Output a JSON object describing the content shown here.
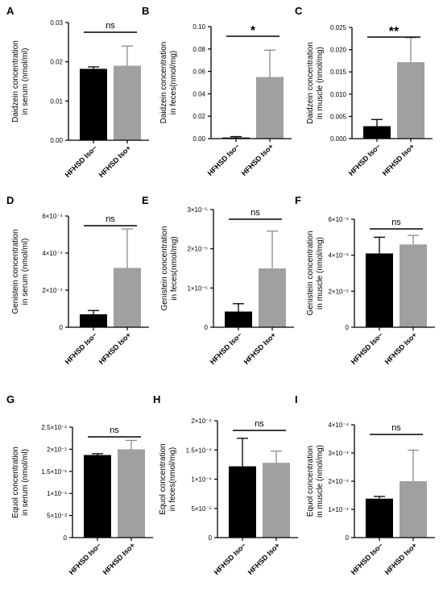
{
  "chart_data": [
    {
      "type": "bar",
      "panel": "A",
      "categories": [
        "HFHSD Iso−",
        "HFHSD Iso+"
      ],
      "values": [
        0.0182,
        0.019
      ],
      "errors": [
        0.0005,
        0.005
      ],
      "colors": [
        "#000000",
        "#a0a0a0"
      ],
      "ylabel_lines": [
        "Daidzein concentration",
        "in serum (nmol/ml)"
      ],
      "ylim": [
        0,
        0.03
      ],
      "ticks": [
        0,
        0.01,
        0.02,
        0.03
      ],
      "tick_labels": [
        "0.00",
        "0.01",
        "0.02",
        "0.03"
      ],
      "significance": "ns"
    },
    {
      "type": "bar",
      "panel": "B",
      "categories": [
        "HFHSD Iso−",
        "HFHSD Iso+"
      ],
      "values": [
        0.001,
        0.055
      ],
      "errors": [
        0.0008,
        0.024
      ],
      "colors": [
        "#000000",
        "#a0a0a0"
      ],
      "ylabel_lines": [
        "Daidzein concentration",
        "in feces(nmol/mg)"
      ],
      "ylim": [
        0,
        0.1
      ],
      "ticks": [
        0,
        0.02,
        0.04,
        0.06,
        0.08,
        0.1
      ],
      "tick_labels": [
        "0.00",
        "0.02",
        "0.04",
        "0.06",
        "0.08",
        "0.10"
      ],
      "significance": "*"
    },
    {
      "type": "bar",
      "panel": "C",
      "categories": [
        "HFHSD Iso−",
        "HFHSD Iso+"
      ],
      "values": [
        0.0028,
        0.0172
      ],
      "errors": [
        0.0015,
        0.0055
      ],
      "colors": [
        "#000000",
        "#a0a0a0"
      ],
      "ylabel_lines": [
        "Daidzein concentration",
        "in muscle (nmol/mg)"
      ],
      "ylim": [
        0,
        0.025
      ],
      "ticks": [
        0,
        0.005,
        0.01,
        0.015,
        0.02,
        0.025
      ],
      "tick_labels": [
        "0.000",
        "0.005",
        "0.010",
        "0.015",
        "0.020",
        "0.025"
      ],
      "significance": "**"
    },
    {
      "type": "bar",
      "panel": "D",
      "categories": [
        "HFHSD Iso−",
        "HFHSD Iso+"
      ],
      "values": [
        7e-05,
        0.00032
      ],
      "errors": [
        2e-05,
        0.00021
      ],
      "colors": [
        "#000000",
        "#a0a0a0"
      ],
      "ylabel_lines": [
        "Genistein concentration",
        "in serum (nmol/ml)"
      ],
      "ylim": [
        0,
        0.0006
      ],
      "ticks": [
        0,
        0.0002,
        0.0004,
        0.0006
      ],
      "tick_labels": [
        "0",
        "2×10⁻⁴",
        "4×10⁻⁴",
        "6×10⁻⁴"
      ],
      "significance": "ns"
    },
    {
      "type": "bar",
      "panel": "E",
      "categories": [
        "HFHSD Iso−",
        "HFHSD Iso+"
      ],
      "values": [
        4e-06,
        1.5e-05
      ],
      "errors": [
        2e-06,
        9.5e-06
      ],
      "colors": [
        "#000000",
        "#a0a0a0"
      ],
      "ylabel_lines": [
        "Genistein concentration",
        "in feces(nmol/mg)"
      ],
      "ylim": [
        0,
        3e-05
      ],
      "ticks": [
        0,
        1e-05,
        2e-05,
        3e-05
      ],
      "tick_labels": [
        "0",
        "1×10⁻⁵",
        "2×10⁻⁵",
        "3×10⁻⁵"
      ],
      "significance": "ns"
    },
    {
      "type": "bar",
      "panel": "F",
      "categories": [
        "HFHSD Iso−",
        "HFHSD Iso+"
      ],
      "values": [
        4.1e-06,
        4.6e-06
      ],
      "errors": [
        9e-07,
        5e-07
      ],
      "colors": [
        "#000000",
        "#a0a0a0"
      ],
      "ylabel_lines": [
        "Genistein concentration",
        "in muscle (nmol/mg)"
      ],
      "ylim": [
        0,
        6e-06
      ],
      "ticks": [
        0,
        2e-06,
        4e-06,
        6e-06
      ],
      "tick_labels": [
        "0",
        "2×10⁻⁶",
        "4×10⁻⁶",
        "6×10⁻⁶"
      ],
      "significance": "ns"
    },
    {
      "type": "bar",
      "panel": "G",
      "categories": [
        "HFHSD Iso−",
        "HFHSD Iso+"
      ],
      "values": [
        0.187,
        0.2
      ],
      "errors": [
        0.003,
        0.02
      ],
      "colors": [
        "#000000",
        "#a0a0a0"
      ],
      "ylabel_lines": [
        "Equol concentration",
        "in serum (nmol/ml)"
      ],
      "ylim": [
        0,
        0.25
      ],
      "ticks": [
        0,
        0.05,
        0.1,
        0.15,
        0.2,
        0.25
      ],
      "tick_labels": [
        "0",
        "5×10⁻²",
        "1×10⁻¹",
        "1.5×10⁻¹",
        "2×10⁻¹",
        "2.5×10⁻¹"
      ],
      "significance": "ns"
    },
    {
      "type": "bar",
      "panel": "H",
      "categories": [
        "HFHSD Iso−",
        "HFHSD Iso+"
      ],
      "values": [
        0.000122,
        0.000128
      ],
      "errors": [
        4.8e-05,
        2e-05
      ],
      "colors": [
        "#000000",
        "#a0a0a0"
      ],
      "ylabel_lines": [
        "Equol concentration",
        "in feces(nmol/mg)"
      ],
      "ylim": [
        0,
        0.0002
      ],
      "ticks": [
        0,
        5e-05,
        0.0001,
        0.00015,
        0.0002
      ],
      "tick_labels": [
        "0",
        "5×10⁻⁵",
        "1×10⁻⁴",
        "1.5×10⁻⁴",
        "2×10⁻⁴"
      ],
      "significance": "ns"
    },
    {
      "type": "bar",
      "panel": "I",
      "categories": [
        "HFHSD Iso−",
        "HFHSD Iso+"
      ],
      "values": [
        0.000138,
        0.0002
      ],
      "errors": [
        8e-06,
        0.00011
      ],
      "colors": [
        "#000000",
        "#a0a0a0"
      ],
      "ylabel_lines": [
        "Equol concentration",
        "in muscle (nmol/mg)"
      ],
      "ylim": [
        0,
        0.0004
      ],
      "ticks": [
        0,
        0.0001,
        0.0002,
        0.0003,
        0.0004
      ],
      "tick_labels": [
        "0",
        "1×10⁻⁴",
        "2×10⁻⁴",
        "3×10⁻⁴",
        "4×10⁻⁴"
      ],
      "significance": "ns"
    }
  ]
}
